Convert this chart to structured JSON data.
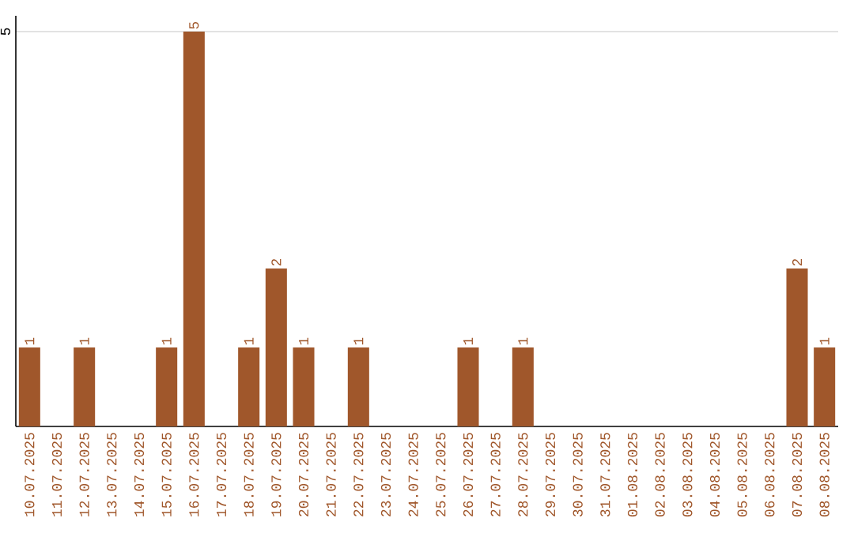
{
  "chart_data": {
    "type": "bar",
    "categories": [
      "10.07.2025",
      "11.07.2025",
      "12.07.2025",
      "13.07.2025",
      "14.07.2025",
      "15.07.2025",
      "16.07.2025",
      "17.07.2025",
      "18.07.2025",
      "19.07.2025",
      "20.07.2025",
      "21.07.2025",
      "22.07.2025",
      "23.07.2025",
      "24.07.2025",
      "25.07.2025",
      "26.07.2025",
      "27.07.2025",
      "28.07.2025",
      "29.07.2025",
      "30.07.2025",
      "31.07.2025",
      "01.08.2025",
      "02.08.2025",
      "03.08.2025",
      "04.08.2025",
      "05.08.2025",
      "06.08.2025",
      "07.08.2025",
      "08.08.2025"
    ],
    "values": [
      1,
      0,
      1,
      0,
      0,
      1,
      5,
      0,
      1,
      2,
      1,
      0,
      1,
      0,
      0,
      0,
      1,
      0,
      1,
      0,
      0,
      0,
      0,
      0,
      0,
      0,
      0,
      0,
      2,
      1
    ],
    "color": "#a0572b",
    "ylim": [
      0,
      5.2
    ],
    "yticks": [
      5
    ],
    "value_labels": [
      "1",
      null,
      "1",
      null,
      null,
      "1",
      "5",
      null,
      "1",
      "2",
      "1",
      null,
      "1",
      null,
      null,
      null,
      "1",
      null,
      "1",
      null,
      null,
      null,
      null,
      null,
      null,
      null,
      null,
      null,
      "2",
      "1"
    ],
    "grid": "y"
  }
}
